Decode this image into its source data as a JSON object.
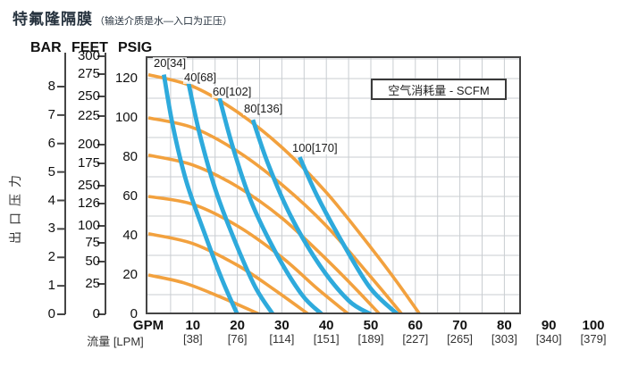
{
  "title": {
    "main": "特氟隆隔膜",
    "paren": "（输送介质是水—入口为正压）"
  },
  "axes": {
    "headers": [
      "BAR",
      "FEET",
      "PSIG"
    ],
    "ylabel": "出口压力",
    "bar_ticks": [
      "8",
      "7",
      "6",
      "5",
      "4",
      "3",
      "2",
      "1",
      "0"
    ],
    "feet_ticks": [
      "300",
      "275",
      "250",
      "225",
      "200",
      "175",
      "250",
      "126",
      "100",
      "75",
      "50",
      "25",
      "0"
    ],
    "psig_ticks": [
      "120",
      "100",
      "80",
      "60",
      "40",
      "20",
      "0"
    ],
    "x_unit": "GPM",
    "x_unit2": "流量 [LPM]",
    "gpm_ticks": [
      "10",
      "20",
      "30",
      "40",
      "50",
      "60",
      "70",
      "80",
      "90",
      "100"
    ],
    "lpm_ticks": [
      "[38]",
      "[76]",
      "[114]",
      "[151]",
      "[189]",
      "[227]",
      "[265]",
      "[303]",
      "[340]",
      "[379]"
    ]
  },
  "legend": {
    "label": "空气消耗量 - SCFM"
  },
  "colors": {
    "flow_curve": "#F2A13E",
    "air_curve": "#2EAADC",
    "grid": "#C9CDD1",
    "axis": "#454545",
    "title_text": "#26323E"
  },
  "chart_data": {
    "type": "line",
    "title": "特氟隆隔膜（输送介质是水—入口为正压）",
    "legend": "空气消耗量 - SCFM",
    "x_axis": {
      "label_primary": "GPM",
      "label_secondary": "流量 [LPM]",
      "ticks_gpm": [
        10,
        20,
        30,
        40,
        50,
        60,
        70,
        80,
        90,
        100
      ],
      "ticks_lpm": [
        38,
        76,
        114,
        151,
        189,
        227,
        265,
        303,
        340,
        379
      ],
      "plot_visible_range_gpm": [
        0,
        84
      ]
    },
    "y_axis": {
      "label": "出口压力",
      "units": [
        "BAR",
        "FEET",
        "PSIG"
      ],
      "bar_ticks": [
        8,
        7,
        6,
        5,
        4,
        3,
        2,
        1,
        0
      ],
      "feet_ticks_as_printed": [
        "300",
        "275",
        "250",
        "225",
        "200",
        "175",
        "250",
        "126",
        "100",
        "75",
        "50",
        "25",
        "0"
      ],
      "psig_ticks": [
        120,
        100,
        80,
        60,
        40,
        20,
        0
      ],
      "range_psig": [
        0,
        131
      ]
    },
    "grid": true,
    "series": [
      {
        "group": "flow",
        "name": "flow-curve-1",
        "points_gpm_psig": [
          [
            0,
            122
          ],
          [
            10,
            116
          ],
          [
            20,
            103
          ],
          [
            30,
            85
          ],
          [
            40,
            62
          ],
          [
            50,
            34
          ],
          [
            56,
            16
          ],
          [
            61,
            0
          ]
        ]
      },
      {
        "group": "flow",
        "name": "flow-curve-2",
        "points_gpm_psig": [
          [
            0,
            100
          ],
          [
            10,
            95
          ],
          [
            20,
            83
          ],
          [
            30,
            66
          ],
          [
            40,
            45
          ],
          [
            50,
            19
          ],
          [
            57,
            0
          ]
        ]
      },
      {
        "group": "flow",
        "name": "flow-curve-3",
        "points_gpm_psig": [
          [
            0,
            81
          ],
          [
            10,
            76
          ],
          [
            20,
            65
          ],
          [
            30,
            49
          ],
          [
            40,
            28
          ],
          [
            47,
            12
          ],
          [
            52,
            0
          ]
        ]
      },
      {
        "group": "flow",
        "name": "flow-curve-4",
        "points_gpm_psig": [
          [
            0,
            60
          ],
          [
            10,
            56
          ],
          [
            20,
            45
          ],
          [
            30,
            29
          ],
          [
            38,
            13
          ],
          [
            45,
            0
          ]
        ]
      },
      {
        "group": "flow",
        "name": "flow-curve-5",
        "points_gpm_psig": [
          [
            0,
            41
          ],
          [
            10,
            36
          ],
          [
            20,
            25
          ],
          [
            28,
            13
          ],
          [
            36,
            0
          ]
        ]
      },
      {
        "group": "flow",
        "name": "flow-curve-6",
        "points_gpm_psig": [
          [
            0,
            20
          ],
          [
            8,
            16
          ],
          [
            16,
            9
          ],
          [
            25,
            0
          ]
        ]
      },
      {
        "group": "air",
        "name": "air-curve-20",
        "label": "20[34]",
        "points_gpm_psig": [
          [
            3.5,
            122
          ],
          [
            5.5,
            96
          ],
          [
            8.5,
            68
          ],
          [
            12.5,
            42
          ],
          [
            16.5,
            18
          ],
          [
            20,
            0
          ]
        ]
      },
      {
        "group": "air",
        "name": "air-curve-40",
        "label": "40[68]",
        "points_gpm_psig": [
          [
            9,
            118
          ],
          [
            11.5,
            92
          ],
          [
            15,
            64
          ],
          [
            19.5,
            37
          ],
          [
            24,
            14
          ],
          [
            28,
            0
          ]
        ]
      },
      {
        "group": "air",
        "name": "air-curve-60",
        "label": "60[102]",
        "points_gpm_psig": [
          [
            16,
            110
          ],
          [
            19,
            85
          ],
          [
            23,
            58
          ],
          [
            28.5,
            32
          ],
          [
            34.5,
            10
          ],
          [
            39,
            0
          ]
        ]
      },
      {
        "group": "air",
        "name": "air-curve-80",
        "label": "80[136]",
        "points_gpm_psig": [
          [
            23.5,
            99
          ],
          [
            27,
            76
          ],
          [
            32,
            50
          ],
          [
            38.5,
            25
          ],
          [
            45,
            7
          ],
          [
            50,
            0
          ]
        ]
      },
      {
        "group": "air",
        "name": "air-curve-100",
        "label": "100[170]",
        "points_gpm_psig": [
          [
            34,
            80
          ],
          [
            38,
            60
          ],
          [
            44,
            35
          ],
          [
            50,
            13
          ],
          [
            56,
            0
          ]
        ]
      }
    ]
  }
}
